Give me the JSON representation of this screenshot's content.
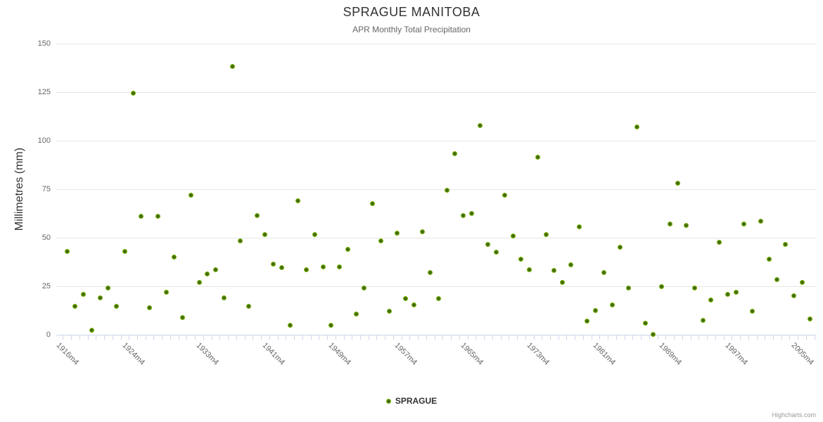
{
  "chart_data": {
    "type": "scatter",
    "title": "SPRAGUE MANITOBA",
    "subtitle": "APR Monthly Total Precipitation",
    "ylabel": "Millimetres (mm)",
    "ylim": [
      0,
      150
    ],
    "yticks": [
      0,
      25,
      50,
      75,
      100,
      125,
      150
    ],
    "xtick_labels": [
      "1916m4",
      "1924m4",
      "1933m4",
      "1941m4",
      "1949m4",
      "1957m4",
      "1965m4",
      "1973m4",
      "1981m4",
      "1989m4",
      "1997m4",
      "2005m4"
    ],
    "grid": "horizontal-only",
    "legend_position": "bottom-center",
    "legend_label": "SPRAGUE",
    "credit": "Highcharts.com",
    "colors": {
      "marker_rim": "#7cb50a",
      "marker_core": "#41690b",
      "grid": "#e6e6e6",
      "axis": "#ccd6eb",
      "title": "#333333",
      "subtitle": "#666666",
      "tick_text": "#666666"
    },
    "series": [
      {
        "name": "SPRAGUE",
        "x": [
          1916,
          1917,
          1918,
          1919,
          1920,
          1921,
          1922,
          1923,
          1924,
          1925,
          1926,
          1927,
          1928,
          1929,
          1930,
          1931,
          1932,
          1933,
          1934,
          1935,
          1936,
          1937,
          1938,
          1939,
          1940,
          1941,
          1942,
          1943,
          1944,
          1945,
          1946,
          1947,
          1948,
          1949,
          1950,
          1951,
          1952,
          1953,
          1954,
          1955,
          1956,
          1957,
          1958,
          1959,
          1960,
          1961,
          1962,
          1963,
          1964,
          1965,
          1966,
          1967,
          1968,
          1969,
          1970,
          1971,
          1972,
          1973,
          1974,
          1975,
          1976,
          1977,
          1978,
          1979,
          1980,
          1981,
          1982,
          1983,
          1984,
          1985,
          1986,
          1987,
          1988,
          1989,
          1990,
          1991,
          1992,
          1993,
          1994,
          1995,
          1996,
          1997,
          1998,
          1999,
          2000,
          2001,
          2002,
          2003,
          2004,
          2005,
          2006
        ],
        "x_suffix": "m4",
        "values": [
          43,
          14.5,
          21,
          2.5,
          19,
          24,
          14.5,
          43,
          124.5,
          61,
          14,
          61,
          22,
          40,
          9,
          72,
          27,
          31.5,
          33.5,
          19,
          138.5,
          48.5,
          14.5,
          61.5,
          51.5,
          36.5,
          34.5,
          5,
          69,
          33.5,
          51.5,
          35,
          5,
          35,
          44,
          10.5,
          24,
          67.5,
          48.5,
          12,
          52.5,
          18.5,
          15.5,
          53,
          32,
          18.5,
          74.5,
          93.5,
          61.5,
          62.5,
          108,
          46.5,
          42.5,
          72,
          51,
          39,
          33.5,
          91.5,
          51.5,
          33,
          27,
          36,
          55.5,
          7,
          12.5,
          32,
          15.5,
          45,
          24,
          107,
          6,
          0.3,
          25,
          57,
          78,
          56.5,
          24,
          7.5,
          18,
          47.5,
          21,
          22,
          57,
          12,
          58.5,
          39,
          28.5,
          46.5,
          20,
          27,
          8
        ]
      }
    ]
  }
}
